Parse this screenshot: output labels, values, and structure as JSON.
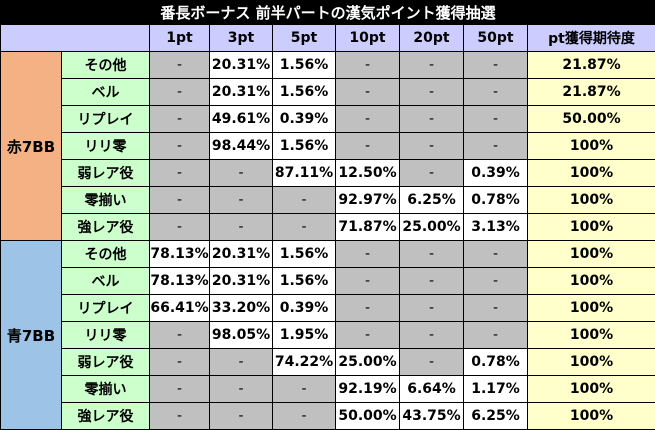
{
  "title": "番長ボーナス 前半パートの漢気ポイント獲得抽選",
  "headers": [
    "1pt",
    "3pt",
    "5pt",
    "10pt",
    "20pt",
    "50pt",
    "pt獲得期待度"
  ],
  "groups": [
    {
      "label": "赤7BB",
      "color": "#f4b183",
      "rows": [
        {
          "label": "その他",
          "values": [
            "-",
            "20.31%",
            "1.56%",
            "-",
            "-",
            "-"
          ],
          "expectation": "21.87%"
        },
        {
          "label": "ベル",
          "values": [
            "-",
            "20.31%",
            "1.56%",
            "-",
            "-",
            "-"
          ],
          "expectation": "21.87%"
        },
        {
          "label": "リプレイ",
          "values": [
            "-",
            "49.61%",
            "0.39%",
            "-",
            "-",
            "-"
          ],
          "expectation": "50.00%"
        },
        {
          "label": "リリ零",
          "values": [
            "-",
            "98.44%",
            "1.56%",
            "-",
            "-",
            "-"
          ],
          "expectation": "100%"
        },
        {
          "label": "弱レア役",
          "values": [
            "-",
            "-",
            "87.11%",
            "12.50%",
            "-",
            "0.39%"
          ],
          "expectation": "100%"
        },
        {
          "label": "零揃い",
          "values": [
            "-",
            "-",
            "-",
            "92.97%",
            "6.25%",
            "0.78%"
          ],
          "expectation": "100%"
        },
        {
          "label": "強レア役",
          "values": [
            "-",
            "-",
            "-",
            "71.87%",
            "25.00%",
            "3.13%"
          ],
          "expectation": "100%"
        }
      ]
    },
    {
      "label": "青7BB",
      "color": "#9dc3e6",
      "rows": [
        {
          "label": "その他",
          "values": [
            "78.13%",
            "20.31%",
            "1.56%",
            "-",
            "-",
            "-"
          ],
          "expectation": "100%"
        },
        {
          "label": "ベル",
          "values": [
            "78.13%",
            "20.31%",
            "1.56%",
            "-",
            "-",
            "-"
          ],
          "expectation": "100%"
        },
        {
          "label": "リプレイ",
          "values": [
            "66.41%",
            "33.20%",
            "0.39%",
            "-",
            "-",
            "-"
          ],
          "expectation": "100%"
        },
        {
          "label": "リリ零",
          "values": [
            "-",
            "98.05%",
            "1.95%",
            "-",
            "-",
            "-"
          ],
          "expectation": "100%"
        },
        {
          "label": "弱レア役",
          "values": [
            "-",
            "-",
            "74.22%",
            "25.00%",
            "-",
            "0.78%"
          ],
          "expectation": "100%"
        },
        {
          "label": "零揃い",
          "values": [
            "-",
            "-",
            "-",
            "92.19%",
            "6.64%",
            "1.17%"
          ],
          "expectation": "100%"
        },
        {
          "label": "強レア役",
          "values": [
            "-",
            "-",
            "-",
            "50.00%",
            "43.75%",
            "6.25%"
          ],
          "expectation": "100%"
        }
      ]
    }
  ]
}
